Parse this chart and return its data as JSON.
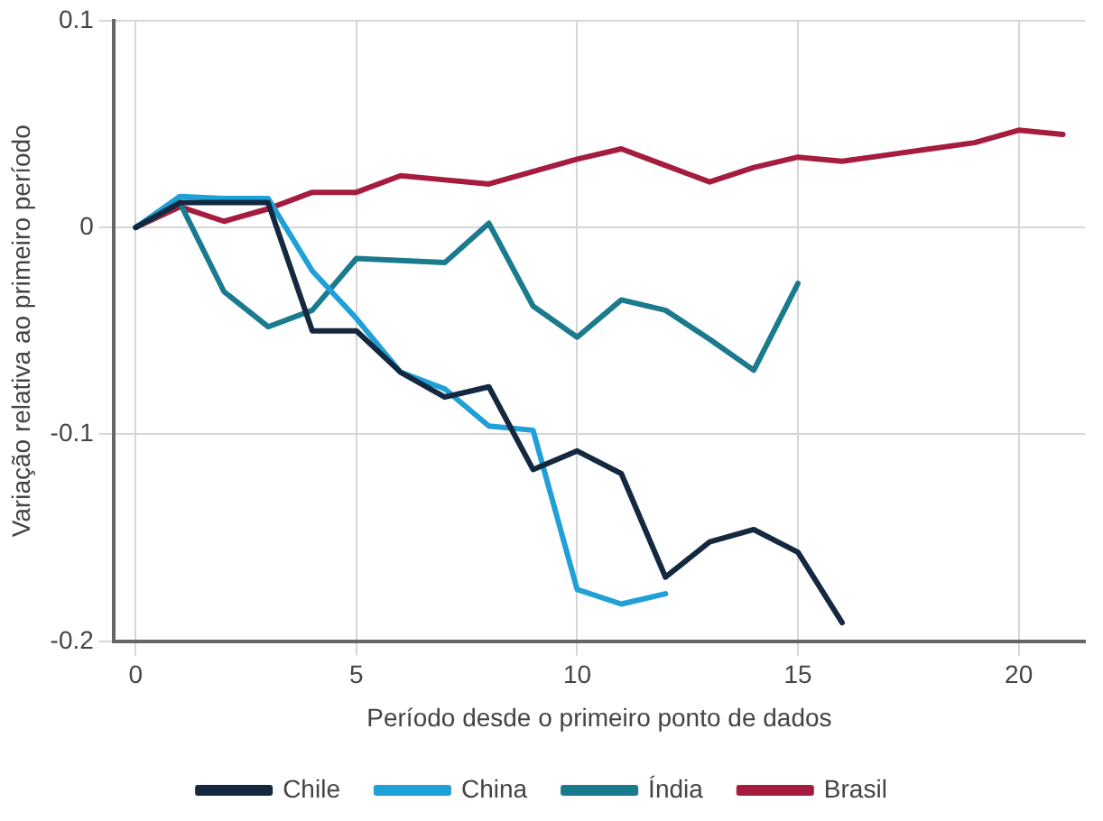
{
  "chart_data": {
    "type": "line",
    "xlabel": "Período desde o primeiro ponto de dados",
    "ylabel": "Variação relativa ao primeiro período",
    "xlim": [
      -0.5,
      21.5
    ],
    "xticks": [
      0,
      5,
      10,
      15,
      20
    ],
    "ylim": [
      -0.2,
      0.1
    ],
    "yticks": [
      -0.2,
      -0.1,
      0,
      0.1
    ],
    "grid": true,
    "legend": "bottom",
    "marker": "none",
    "line_style": "solid",
    "series": [
      {
        "name": "Chile",
        "color": "#14283f",
        "x": [
          0,
          1,
          2,
          3,
          4,
          5,
          6,
          7,
          8,
          9,
          10,
          11,
          12,
          13,
          14,
          15,
          16
        ],
        "values": [
          0,
          0.012,
          0.012,
          0.012,
          -0.05,
          -0.05,
          -0.07,
          -0.082,
          -0.077,
          -0.117,
          -0.108,
          -0.119,
          -0.169,
          -0.152,
          -0.146,
          -0.157,
          -0.191
        ]
      },
      {
        "name": "China",
        "color": "#1fa0d6",
        "x": [
          0,
          1,
          2,
          3,
          4,
          5,
          6,
          7,
          8,
          9,
          10,
          11,
          12
        ],
        "values": [
          0,
          0.015,
          0.014,
          0.014,
          -0.021,
          -0.044,
          -0.07,
          -0.078,
          -0.096,
          -0.098,
          -0.175,
          -0.182,
          -0.177
        ]
      },
      {
        "name": "Índia",
        "color": "#1a7a8e",
        "x": [
          0,
          1,
          2,
          3,
          4,
          5,
          6,
          7,
          8,
          9,
          10,
          11,
          12,
          13,
          14,
          15
        ],
        "values": [
          0,
          0.012,
          -0.031,
          -0.048,
          -0.04,
          -0.015,
          -0.016,
          -0.017,
          0.002,
          -0.038,
          -0.053,
          -0.035,
          -0.04,
          -0.054,
          -0.069,
          -0.027
        ]
      },
      {
        "name": "Brasil",
        "color": "#a51c3e",
        "x": [
          0,
          1,
          2,
          3,
          4,
          5,
          6,
          7,
          8,
          9,
          10,
          11,
          12,
          13,
          14,
          15,
          16,
          17,
          18,
          19,
          20,
          21
        ],
        "values": [
          0,
          0.01,
          0.003,
          0.009,
          0.017,
          0.017,
          0.025,
          0.023,
          0.021,
          0.027,
          0.033,
          0.038,
          0.03,
          0.022,
          0.029,
          0.034,
          0.032,
          0.035,
          0.038,
          0.041,
          0.047,
          0.045
        ]
      }
    ]
  }
}
